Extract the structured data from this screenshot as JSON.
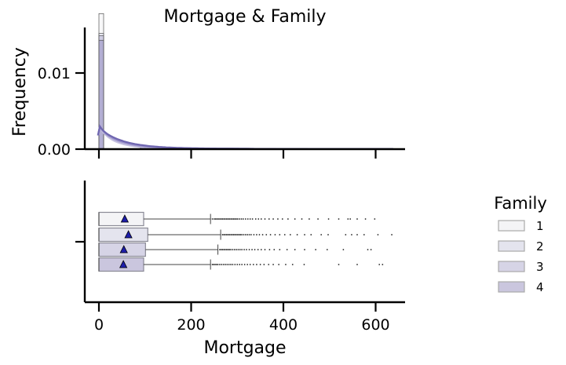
{
  "chart_data": [
    {
      "type": "histogram",
      "title": "Mortgage & Family",
      "ylabel": "Frequency",
      "xlim": [
        -50,
        670
      ],
      "ylim": [
        0,
        0.0185
      ],
      "yticks": [
        0.0,
        0.01
      ],
      "ytick_labels": [
        "0.00",
        "0.01"
      ],
      "xticks": [
        0,
        200,
        400,
        600
      ],
      "bin_width": 10.2,
      "series": [
        {
          "name": "1",
          "color": "#f2f2f4",
          "stroke": "#555555",
          "bins": [
            {
              "x": 0,
              "y": 0.0178
            },
            {
              "x": 90,
              "y": 0.00035
            }
          ]
        },
        {
          "name": "2",
          "color": "#dcdcec",
          "stroke": "#555555",
          "bins": [
            {
              "x": 0,
              "y": 0.0152
            },
            {
              "x": 90,
              "y": 0.0003
            }
          ]
        },
        {
          "name": "3",
          "color": "#bcb8d8",
          "stroke": "#555555",
          "bins": [
            {
              "x": 0,
              "y": 0.0149
            },
            {
              "x": 90,
              "y": 0.0003
            }
          ]
        },
        {
          "name": "4",
          "color": "#9a94c4",
          "stroke": "#555555",
          "bins": [
            {
              "x": 0,
              "y": 0.0143
            },
            {
              "x": 90,
              "y": 0.00025
            }
          ]
        }
      ],
      "kde_peak": 0.003
    },
    {
      "type": "boxplot",
      "xlabel": "Mortgage",
      "xlim": [
        -50,
        670
      ],
      "xticks": [
        0,
        200,
        400,
        600
      ],
      "xtick_labels": [
        "0",
        "200",
        "400",
        "600"
      ],
      "groups": [
        {
          "name": "1",
          "color": "#f4f4f6",
          "q1": 0,
          "median": 0,
          "q3": 97,
          "whisker_high": 242,
          "mean": 56,
          "outliers": [
            246,
            250,
            253,
            256,
            259,
            262,
            265,
            268,
            271,
            274,
            277,
            280,
            283,
            286,
            289,
            292,
            295,
            298,
            301,
            305,
            309,
            313,
            318,
            323,
            328,
            333,
            340,
            346,
            352,
            360,
            369,
            378,
            388,
            398,
            410,
            425,
            440,
            456,
            475,
            498,
            520,
            540,
            545,
            560,
            578,
            598
          ]
        },
        {
          "name": "2",
          "color": "#e4e4ee",
          "q1": 0,
          "median": 0,
          "q3": 106,
          "whisker_high": 264,
          "mean": 64,
          "outliers": [
            268,
            271,
            274,
            277,
            280,
            283,
            286,
            289,
            292,
            295,
            298,
            301,
            304,
            307,
            310,
            314,
            318,
            322,
            326,
            330,
            336,
            342,
            348,
            355,
            363,
            372,
            382,
            392,
            403,
            415,
            430,
            446,
            460,
            482,
            497,
            535,
            548,
            560,
            575,
            605,
            635
          ]
        },
        {
          "name": "3",
          "color": "#d6d4e6",
          "q1": 0,
          "median": 0,
          "q3": 101,
          "whisker_high": 258,
          "mean": 54,
          "outliers": [
            262,
            265,
            268,
            271,
            274,
            277,
            280,
            283,
            286,
            290,
            294,
            298,
            302,
            306,
            310,
            315,
            320,
            326,
            332,
            338,
            345,
            352,
            360,
            370,
            380,
            392,
            408,
            425,
            446,
            470,
            495,
            530,
            583,
            590
          ]
        },
        {
          "name": "4",
          "color": "#cac6de",
          "q1": 0,
          "median": 0,
          "q3": 97,
          "whisker_high": 242,
          "mean": 53,
          "outliers": [
            246,
            249,
            252,
            255,
            258,
            262,
            266,
            270,
            274,
            278,
            282,
            286,
            290,
            295,
            300,
            305,
            310,
            316,
            322,
            328,
            335,
            342,
            350,
            358,
            368,
            378,
            390,
            405,
            420,
            445,
            520,
            560,
            608,
            615
          ]
        }
      ]
    }
  ],
  "legend": {
    "title": "Family",
    "items": [
      {
        "label": "1",
        "color": "#f4f4f6"
      },
      {
        "label": "2",
        "color": "#e4e4ee"
      },
      {
        "label": "3",
        "color": "#d6d4e6"
      },
      {
        "label": "4",
        "color": "#cac6de"
      }
    ]
  }
}
